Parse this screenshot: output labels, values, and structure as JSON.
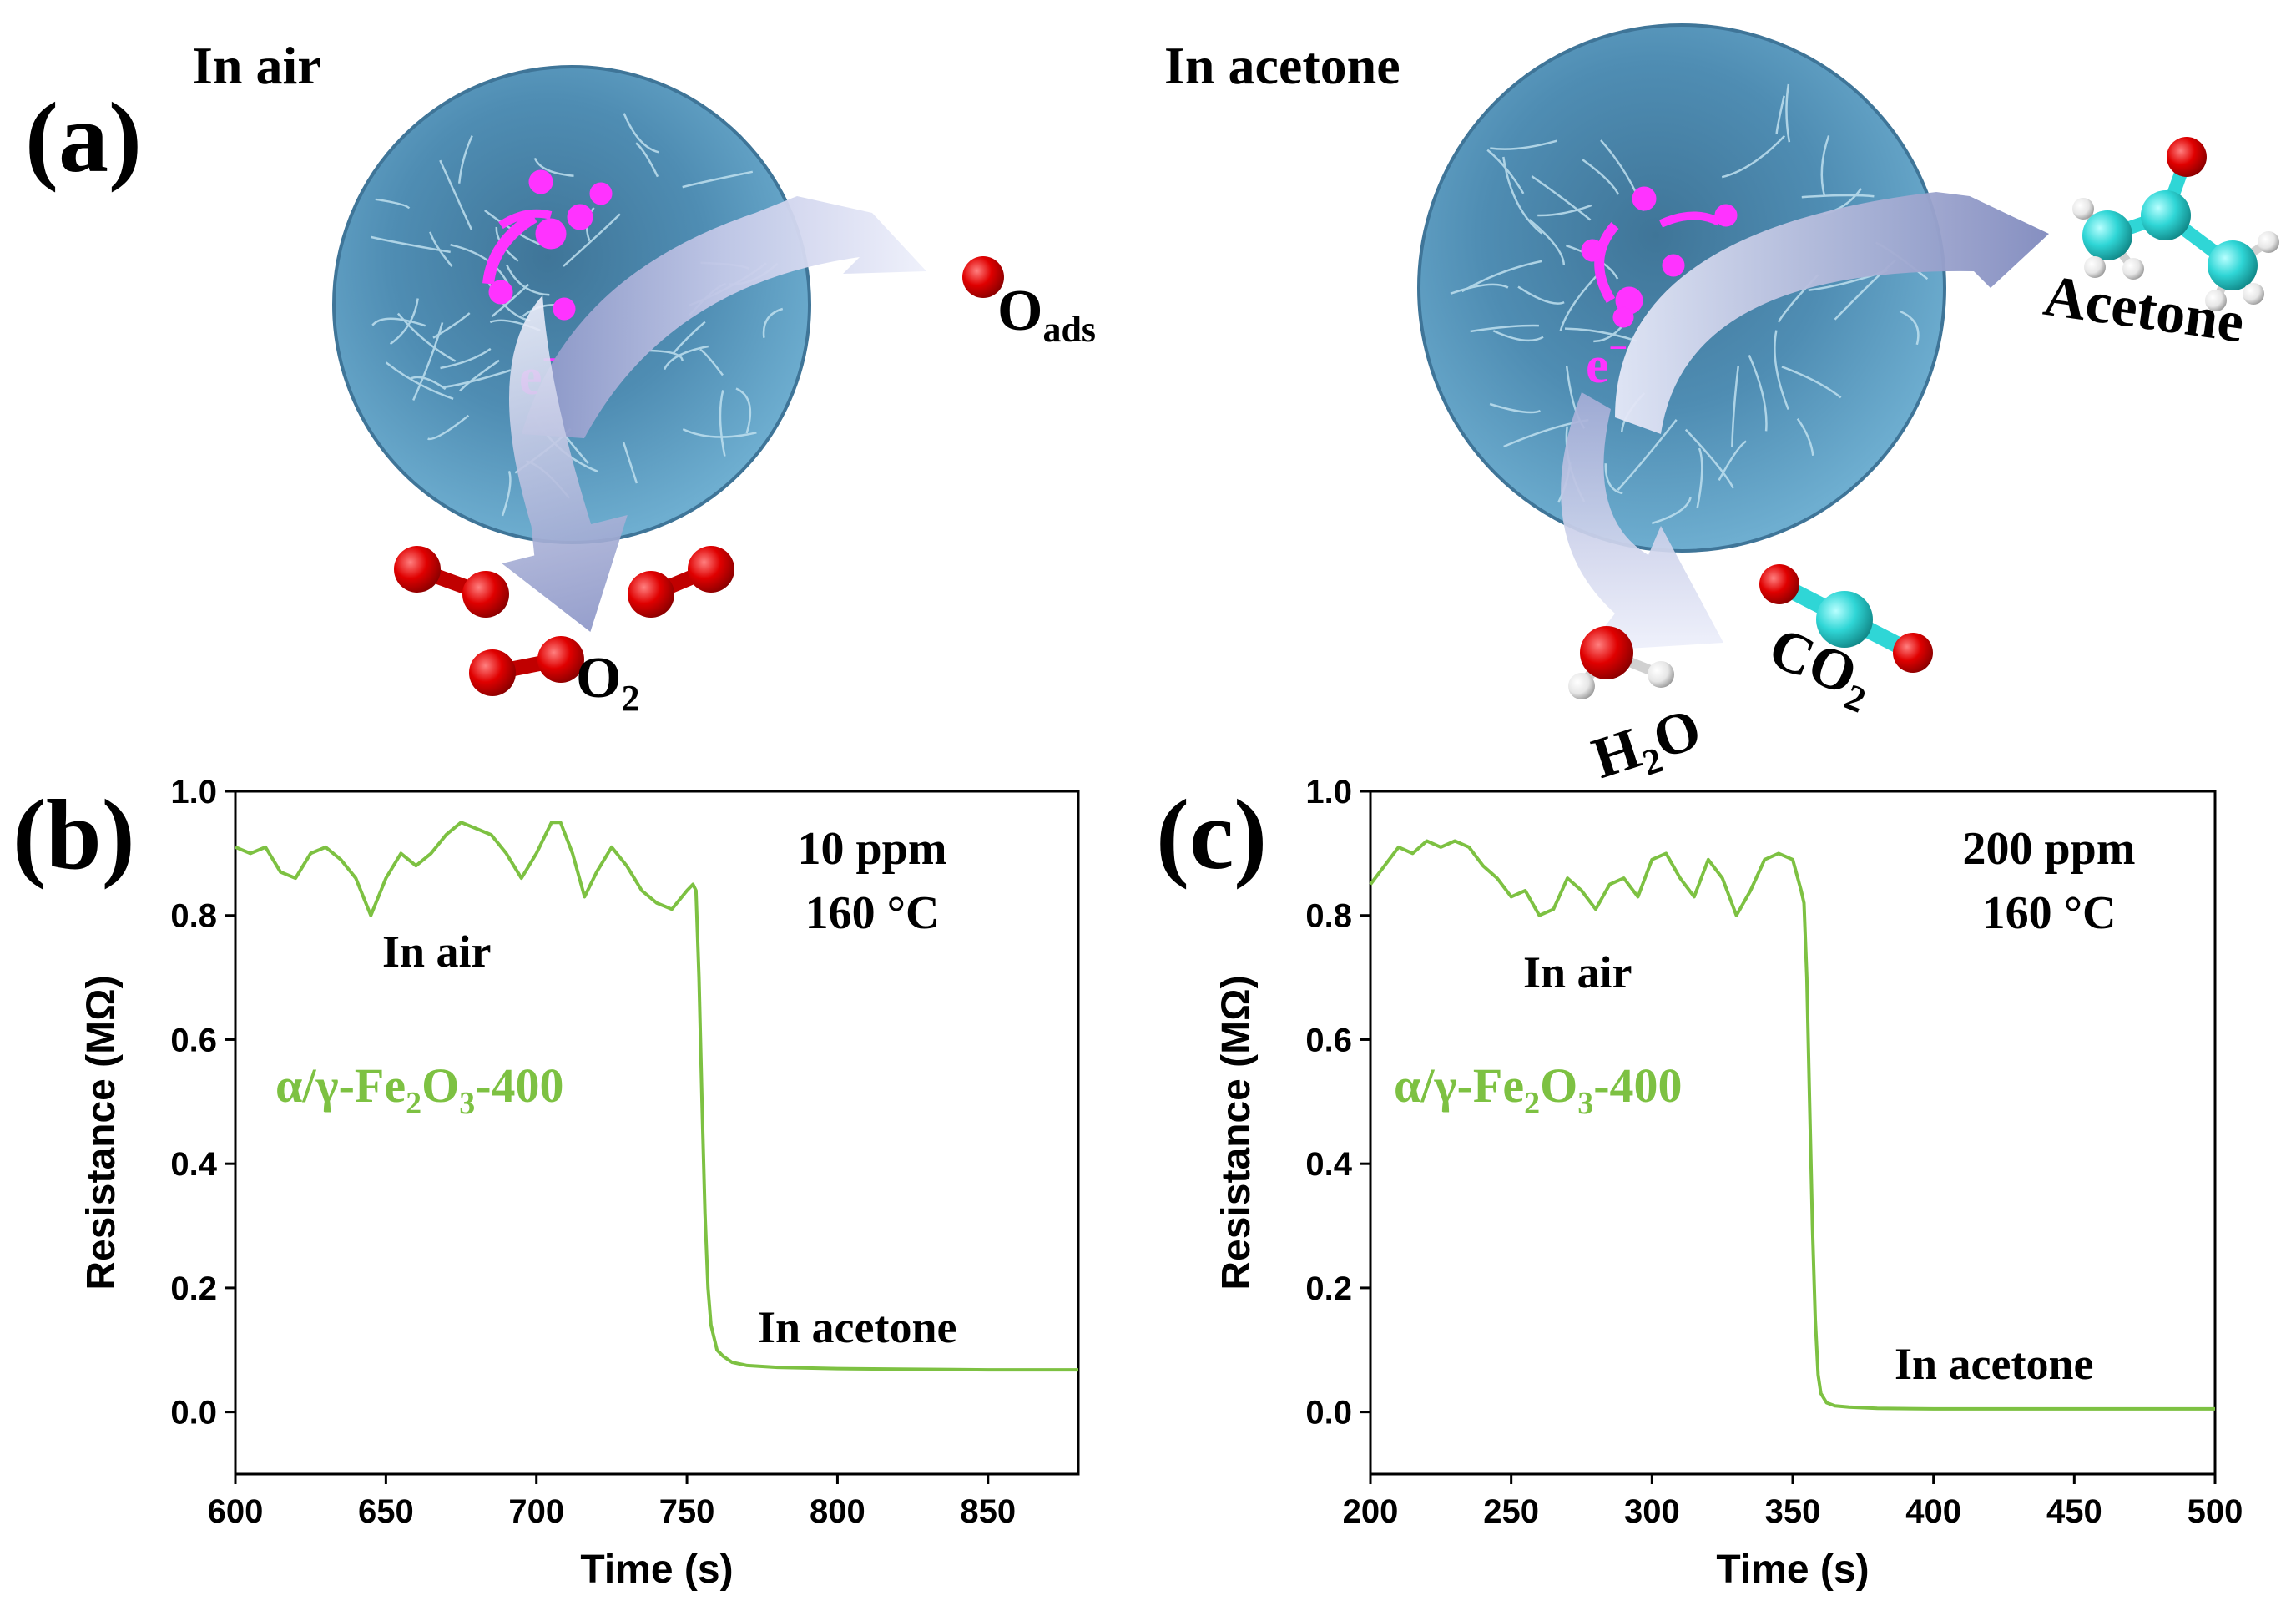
{
  "panel_a": {
    "label": "(a)",
    "left_title": "In air",
    "right_title": "In acetone",
    "electron": "e",
    "electron_sup": "−",
    "o_ads_main": "O",
    "o_ads_sub": "ads",
    "o2_main": "O",
    "o2_sub": "2",
    "acetone": "Acetone",
    "h2o_h": "H",
    "h2o_sub": "2",
    "h2o_o": "O",
    "co2_main": "CO",
    "co2_sub": "2",
    "colors": {
      "sphere": "#5b9cc0",
      "sphere_dark": "#2e5a78",
      "electron": "#ff33ff",
      "oxygen": "#e00000",
      "carbon": "#2fd6d6",
      "hydrogen": "#f2f2f2",
      "arrow_start": "#eef0fb",
      "arrow_end": "#8a94c6"
    }
  },
  "chart_data": [
    {
      "type": "line",
      "panel_label": "(b)",
      "xlabel": "Time (s)",
      "ylabel": "Resistance (MΩ)",
      "xlim": [
        600,
        880
      ],
      "ylim": [
        -0.1,
        1.0
      ],
      "xticks": [
        600,
        650,
        700,
        750,
        800,
        850
      ],
      "yticks": [
        0.0,
        0.2,
        0.4,
        0.6,
        0.8,
        1.0
      ],
      "xtick_labels": [
        "600",
        "650",
        "700",
        "750",
        "800",
        "850"
      ],
      "ytick_labels": [
        "0.0",
        "0.2",
        "0.4",
        "0.6",
        "0.8",
        "1.0"
      ],
      "annotation_conc": "10 ppm",
      "annotation_temp": "160 °C",
      "label_air": "In air",
      "label_acetone": "In acetone",
      "material_pre": "α/γ-Fe",
      "material_sub1": "2",
      "material_mid": "O",
      "material_sub2": "3",
      "material_post": "-400",
      "line_color": "#7dc142",
      "x": [
        600,
        605,
        610,
        615,
        620,
        625,
        630,
        635,
        640,
        645,
        650,
        655,
        660,
        665,
        670,
        675,
        680,
        685,
        690,
        695,
        700,
        705,
        708,
        712,
        716,
        720,
        725,
        730,
        735,
        740,
        745,
        750,
        752,
        753,
        754,
        755,
        756,
        757,
        758,
        759,
        760,
        762,
        765,
        770,
        780,
        800,
        820,
        850,
        880
      ],
      "y": [
        0.91,
        0.9,
        0.91,
        0.87,
        0.86,
        0.9,
        0.91,
        0.89,
        0.86,
        0.8,
        0.86,
        0.9,
        0.88,
        0.9,
        0.93,
        0.95,
        0.94,
        0.93,
        0.9,
        0.86,
        0.9,
        0.95,
        0.95,
        0.9,
        0.83,
        0.87,
        0.91,
        0.88,
        0.84,
        0.82,
        0.81,
        0.84,
        0.85,
        0.84,
        0.7,
        0.5,
        0.32,
        0.2,
        0.14,
        0.12,
        0.1,
        0.09,
        0.08,
        0.075,
        0.072,
        0.07,
        0.069,
        0.068,
        0.068
      ]
    },
    {
      "type": "line",
      "panel_label": "(c)",
      "xlabel": "Time (s)",
      "ylabel": "Resistance (MΩ)",
      "xlim": [
        200,
        500
      ],
      "ylim": [
        -0.1,
        1.0
      ],
      "xticks": [
        200,
        250,
        300,
        350,
        400,
        450,
        500
      ],
      "yticks": [
        0.0,
        0.2,
        0.4,
        0.6,
        0.8,
        1.0
      ],
      "xtick_labels": [
        "200",
        "250",
        "300",
        "350",
        "400",
        "450",
        "500"
      ],
      "ytick_labels": [
        "0.0",
        "0.2",
        "0.4",
        "0.6",
        "0.8",
        "1.0"
      ],
      "annotation_conc": "200 ppm",
      "annotation_temp": "160 °C",
      "label_air": "In air",
      "label_acetone": "In acetone",
      "material_pre": "α/γ-Fe",
      "material_sub1": "2",
      "material_mid": "O",
      "material_sub2": "3",
      "material_post": "-400",
      "line_color": "#7dc142",
      "x": [
        200,
        205,
        210,
        215,
        220,
        225,
        230,
        235,
        240,
        245,
        250,
        255,
        260,
        265,
        270,
        275,
        280,
        285,
        290,
        295,
        300,
        305,
        310,
        315,
        320,
        325,
        330,
        335,
        340,
        345,
        350,
        353,
        354,
        355,
        356,
        357,
        358,
        359,
        360,
        362,
        365,
        370,
        380,
        400,
        450,
        500
      ],
      "y": [
        0.85,
        0.88,
        0.91,
        0.9,
        0.92,
        0.91,
        0.92,
        0.91,
        0.88,
        0.86,
        0.83,
        0.84,
        0.8,
        0.81,
        0.86,
        0.84,
        0.81,
        0.85,
        0.86,
        0.83,
        0.89,
        0.9,
        0.86,
        0.83,
        0.89,
        0.86,
        0.8,
        0.84,
        0.89,
        0.9,
        0.89,
        0.84,
        0.82,
        0.7,
        0.5,
        0.3,
        0.15,
        0.06,
        0.03,
        0.015,
        0.01,
        0.008,
        0.006,
        0.005,
        0.005,
        0.005
      ]
    }
  ]
}
